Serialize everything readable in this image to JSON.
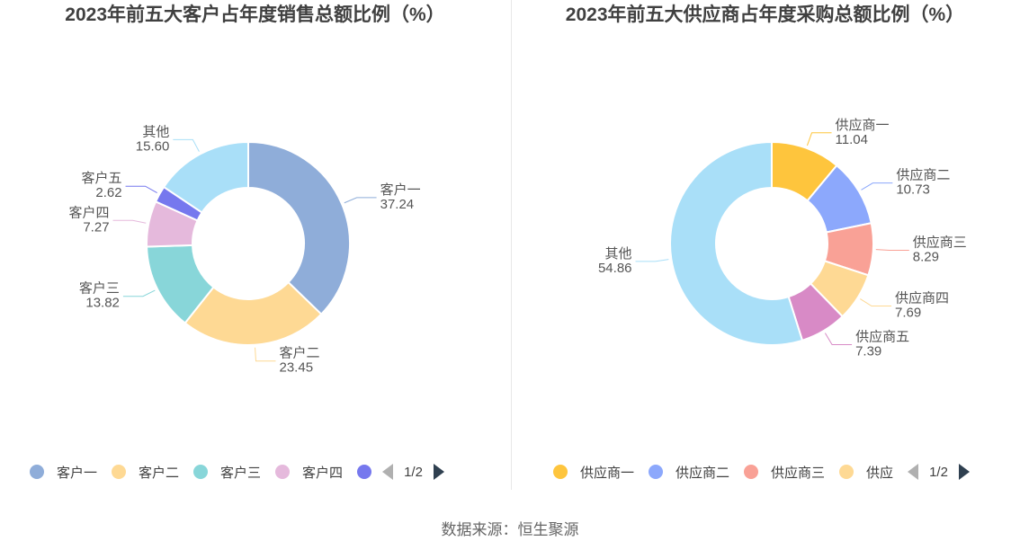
{
  "source": "数据来源：恒生聚源",
  "chart_data": [
    {
      "type": "pie",
      "title": "2023年前五大客户占年度销售总额比例（%）",
      "legend": {
        "placement": "bottom",
        "items": [
          "客户一",
          "客户二",
          "客户三",
          "客户四"
        ],
        "page": "1/2"
      },
      "categories": [
        "客户一",
        "客户二",
        "客户三",
        "客户四",
        "客户五",
        "其他"
      ],
      "values": [
        37.24,
        23.45,
        13.82,
        7.27,
        2.62,
        15.6
      ],
      "labels": [
        "37.24",
        "23.45",
        "13.82",
        "7.27",
        "2.62",
        "15.60"
      ],
      "colors": [
        "#8fadd9",
        "#fed994",
        "#88d6d9",
        "#e5b9dc",
        "#7678ee",
        "#a9dff8"
      ]
    },
    {
      "type": "pie",
      "title": "2023年前五大供应商占年度采购总额比例（%）",
      "legend": {
        "placement": "bottom",
        "items": [
          "供应商一",
          "供应商二",
          "供应商三",
          "供应"
        ],
        "page": "1/2"
      },
      "categories": [
        "供应商一",
        "供应商二",
        "供应商三",
        "供应商四",
        "供应商五",
        "其他"
      ],
      "values": [
        11.04,
        10.73,
        8.29,
        7.69,
        7.39,
        54.86
      ],
      "labels": [
        "11.04",
        "10.73",
        "8.29",
        "7.69",
        "7.39",
        "54.86"
      ],
      "colors": [
        "#fec53d",
        "#8ca8fc",
        "#f9a196",
        "#fed994",
        "#d88ac6",
        "#a9dff8"
      ]
    }
  ]
}
